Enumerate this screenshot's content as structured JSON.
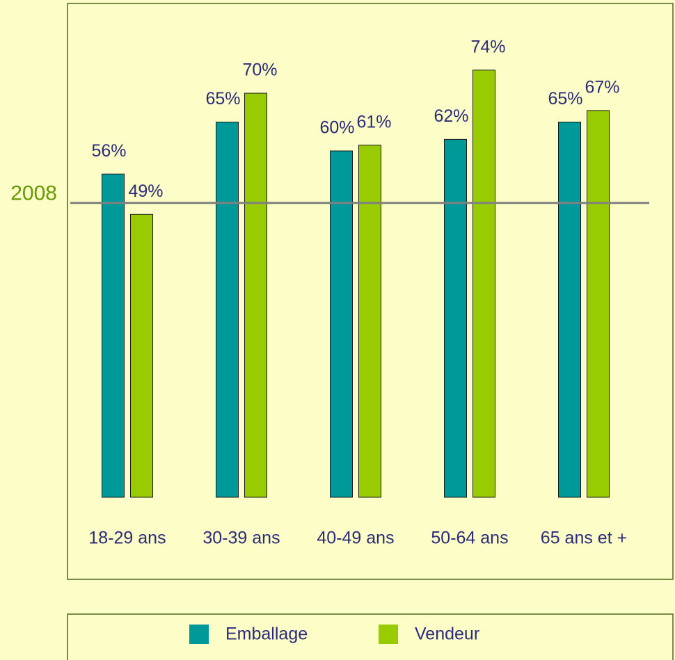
{
  "chart_data": {
    "type": "bar",
    "categories": [
      "18-29 ans",
      "30-39 ans",
      "40-49 ans",
      "50-64 ans",
      "65 ans et +"
    ],
    "series": [
      {
        "name": "Emballage",
        "color": "#009999",
        "values": [
          56,
          65,
          60,
          62,
          65
        ],
        "value_labels": [
          "56%",
          "65%",
          "60%",
          "62%",
          "65%"
        ]
      },
      {
        "name": "Vendeur",
        "color": "#99cc00",
        "values": [
          49,
          70,
          61,
          74,
          67
        ],
        "value_labels": [
          "49%",
          "70%",
          "61%",
          "74%",
          "67%"
        ]
      }
    ],
    "reference_line": {
      "label": "2008",
      "value": 51,
      "color": "#808080"
    }
  }
}
